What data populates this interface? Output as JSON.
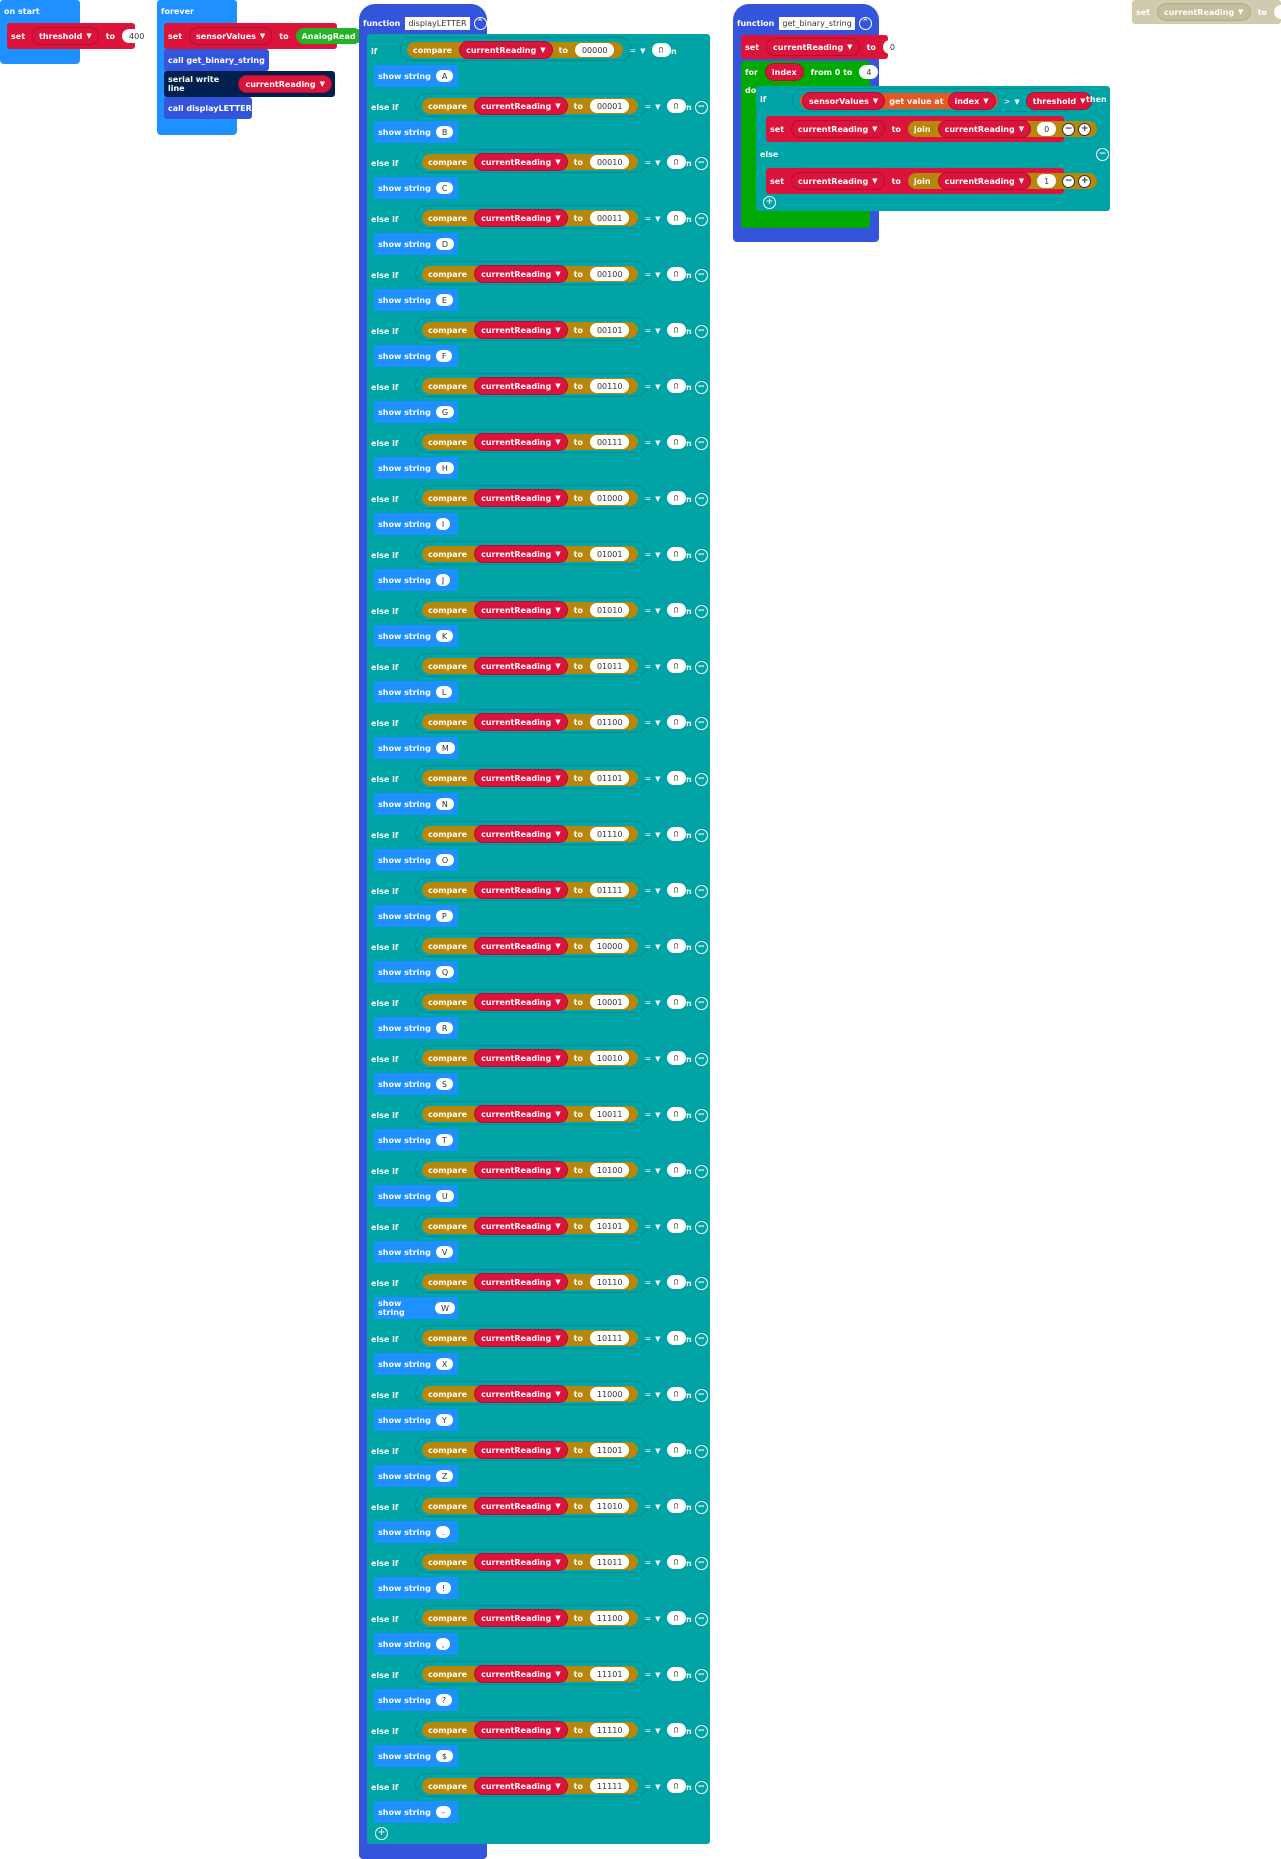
{
  "on_start": {
    "label": "on start",
    "set_kw": "set",
    "var": "threshold",
    "to_kw": "to",
    "value": "400"
  },
  "forever": {
    "label": "forever",
    "set_kw": "set",
    "var": "sensorValues",
    "to_kw": "to",
    "value": "AnalogRead",
    "call1": "call get_binary_string",
    "serial": "serial write line",
    "serial_var": "currentReading",
    "call2": "call displayLETTER"
  },
  "display_fn": {
    "function_kw": "function",
    "name": "displayLETTER",
    "if_kw": "if",
    "elseif_kw": "else if",
    "compare_kw": "compare",
    "var": "currentReading",
    "to_kw": "to",
    "op": "=",
    "rhs": "0",
    "then_kw": "then",
    "show_kw": "show string",
    "branches": [
      {
        "code": "00000",
        "letter": "A"
      },
      {
        "code": "00001",
        "letter": "B"
      },
      {
        "code": "00010",
        "letter": "C"
      },
      {
        "code": "00011",
        "letter": "D"
      },
      {
        "code": "00100",
        "letter": "E"
      },
      {
        "code": "00101",
        "letter": "F"
      },
      {
        "code": "00110",
        "letter": "G"
      },
      {
        "code": "00111",
        "letter": "H"
      },
      {
        "code": "01000",
        "letter": "I"
      },
      {
        "code": "01001",
        "letter": "J"
      },
      {
        "code": "01010",
        "letter": "K"
      },
      {
        "code": "01011",
        "letter": "L"
      },
      {
        "code": "01100",
        "letter": "M"
      },
      {
        "code": "01101",
        "letter": "N"
      },
      {
        "code": "01110",
        "letter": "O"
      },
      {
        "code": "01111",
        "letter": "P"
      },
      {
        "code": "10000",
        "letter": "Q"
      },
      {
        "code": "10001",
        "letter": "R"
      },
      {
        "code": "10010",
        "letter": "S"
      },
      {
        "code": "10011",
        "letter": "T"
      },
      {
        "code": "10100",
        "letter": "U"
      },
      {
        "code": "10101",
        "letter": "V"
      },
      {
        "code": "10110",
        "letter": "W"
      },
      {
        "code": "10111",
        "letter": "X"
      },
      {
        "code": "11000",
        "letter": "Y"
      },
      {
        "code": "11001",
        "letter": "Z"
      },
      {
        "code": "11010",
        "letter": "."
      },
      {
        "code": "11011",
        "letter": "!"
      },
      {
        "code": "11100",
        "letter": ","
      },
      {
        "code": "11101",
        "letter": "?"
      },
      {
        "code": "11110",
        "letter": "$"
      },
      {
        "code": "11111",
        "letter": "-"
      }
    ]
  },
  "binary_fn": {
    "function_kw": "function",
    "name": "get_binary_string",
    "set_kw": "set",
    "var": "currentReading",
    "to_kw": "to",
    "init_value": "0",
    "for_kw": "for",
    "index_var": "index",
    "from_kw": "from 0 to",
    "to_value": "4",
    "do_kw": "do",
    "if_kw": "if",
    "array_var": "sensorValues",
    "get_kw": "get value at",
    "op": ">",
    "threshold_var": "threshold",
    "then_kw": "then",
    "join_kw": "join",
    "bit0": "0",
    "else_kw": "else",
    "bit1": "1"
  },
  "stray": {
    "set_kw": "set",
    "var": "currentReading",
    "to_kw": "to",
    "value": "\"\""
  },
  "colors": {
    "event": "#1e90ff",
    "function": "#3455db",
    "logic": "#00a4a6",
    "variable": "#dc143c",
    "compare": "#b8860b",
    "loop": "#00aa00",
    "array": "#e65722",
    "serial": "#002050",
    "analog": "#24b324"
  }
}
